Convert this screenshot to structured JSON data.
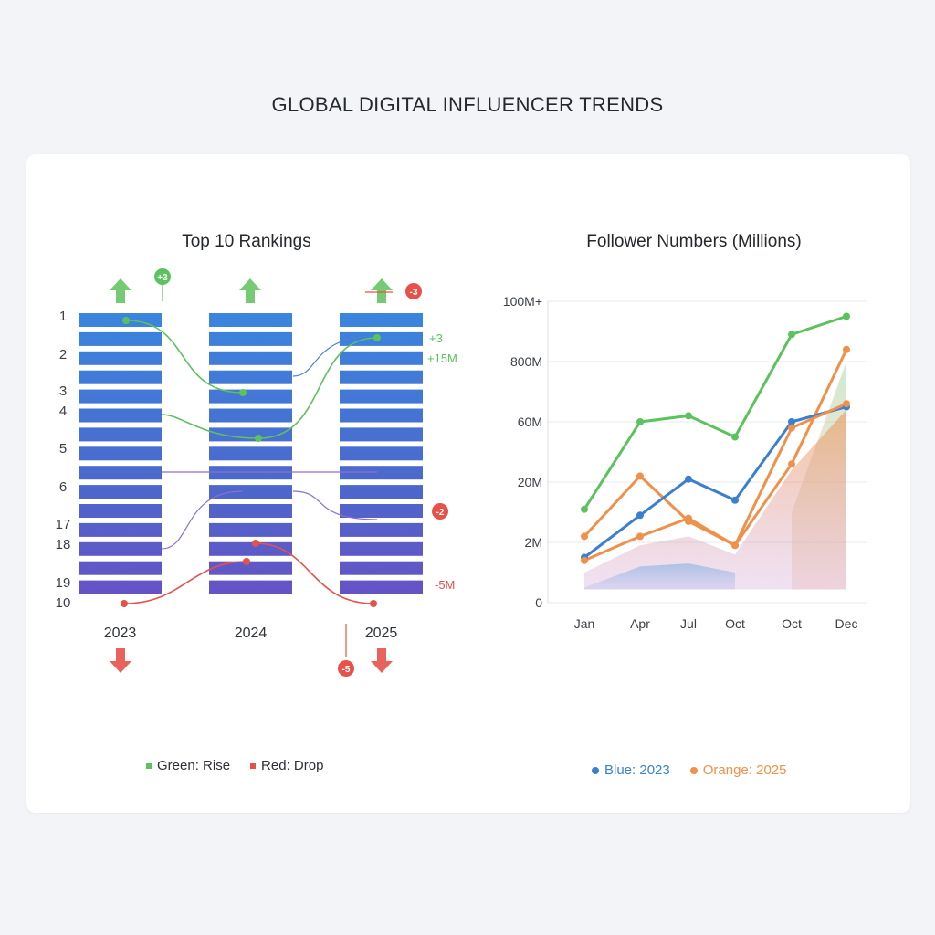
{
  "title": "GLOBAL DIGITAL INFLUENCER TRENDS",
  "colors": {
    "green": "#5cc25c",
    "red": "#e8514a",
    "blue": "#3b7fd1",
    "orange": "#f0904a",
    "purple": "#8a6fd0"
  },
  "rankings": {
    "title": "Top 10 Rankings",
    "years": [
      "2023",
      "2024",
      "2025"
    ],
    "rank_labels": [
      "1",
      "2",
      "3",
      "4",
      "5",
      "6",
      "17",
      "18",
      "19",
      "10"
    ],
    "column_icons": {
      "top": [
        "arrow-up-icon",
        "arrow-up-icon",
        "arrow-up-icon"
      ],
      "bottom": [
        "arrow-down-icon",
        "arrow-down-icon"
      ]
    },
    "badges": {
      "green_top": "+3",
      "red_top": "-3",
      "red_mid": "-2",
      "red_bottom": "-5"
    },
    "annotations": {
      "plus3": "+3",
      "plus15m": "+15M",
      "minus5m": "-5M"
    },
    "legend": {
      "rise": "Green: Rise",
      "drop": "Red: Drop"
    }
  },
  "followers": {
    "title": "Follower Numbers (Millions)",
    "legend": {
      "blue": "Blue: 2023",
      "orange": "Orange: 2025"
    }
  },
  "chart_data": {
    "type": "line",
    "title": "Follower Numbers (Millions)",
    "categories": [
      "Jan",
      "Apr",
      "Jul",
      "Oct",
      "Oct",
      "Dec"
    ],
    "y_tick_labels": [
      "0",
      "2M",
      "20M",
      "60M",
      "800M",
      "100M+"
    ],
    "y_tick_positions": [
      0,
      1,
      2,
      3,
      4,
      5
    ],
    "ylim": [
      0,
      5
    ],
    "grid": true,
    "legend_position": "bottom",
    "series": [
      {
        "values": [
          1.55,
          3.0,
          3.1,
          2.75,
          4.45,
          4.75
        ]
      },
      {
        "name": "Orange: 2025",
        "values": [
          1.1,
          2.1,
          1.35,
          0.95,
          2.3,
          4.2
        ]
      },
      {
        "name": "Blue: 2023",
        "values": [
          0.75,
          1.45,
          2.05,
          1.7,
          3.0,
          3.25
        ]
      },
      {
        "values": [
          0.7,
          1.1,
          1.4,
          0.95,
          2.9,
          3.3
        ]
      }
    ],
    "areas": [
      {
        "name": "orange-area",
        "values": [
          0.5,
          0.95,
          1.1,
          0.8,
          2.2,
          3.2
        ]
      },
      {
        "name": "blue-area",
        "values": [
          0.25,
          0.6,
          0.65,
          0.5
        ]
      },
      {
        "name": "green-area",
        "values": [
          null,
          null,
          null,
          null,
          1.5,
          4.0
        ]
      }
    ]
  }
}
